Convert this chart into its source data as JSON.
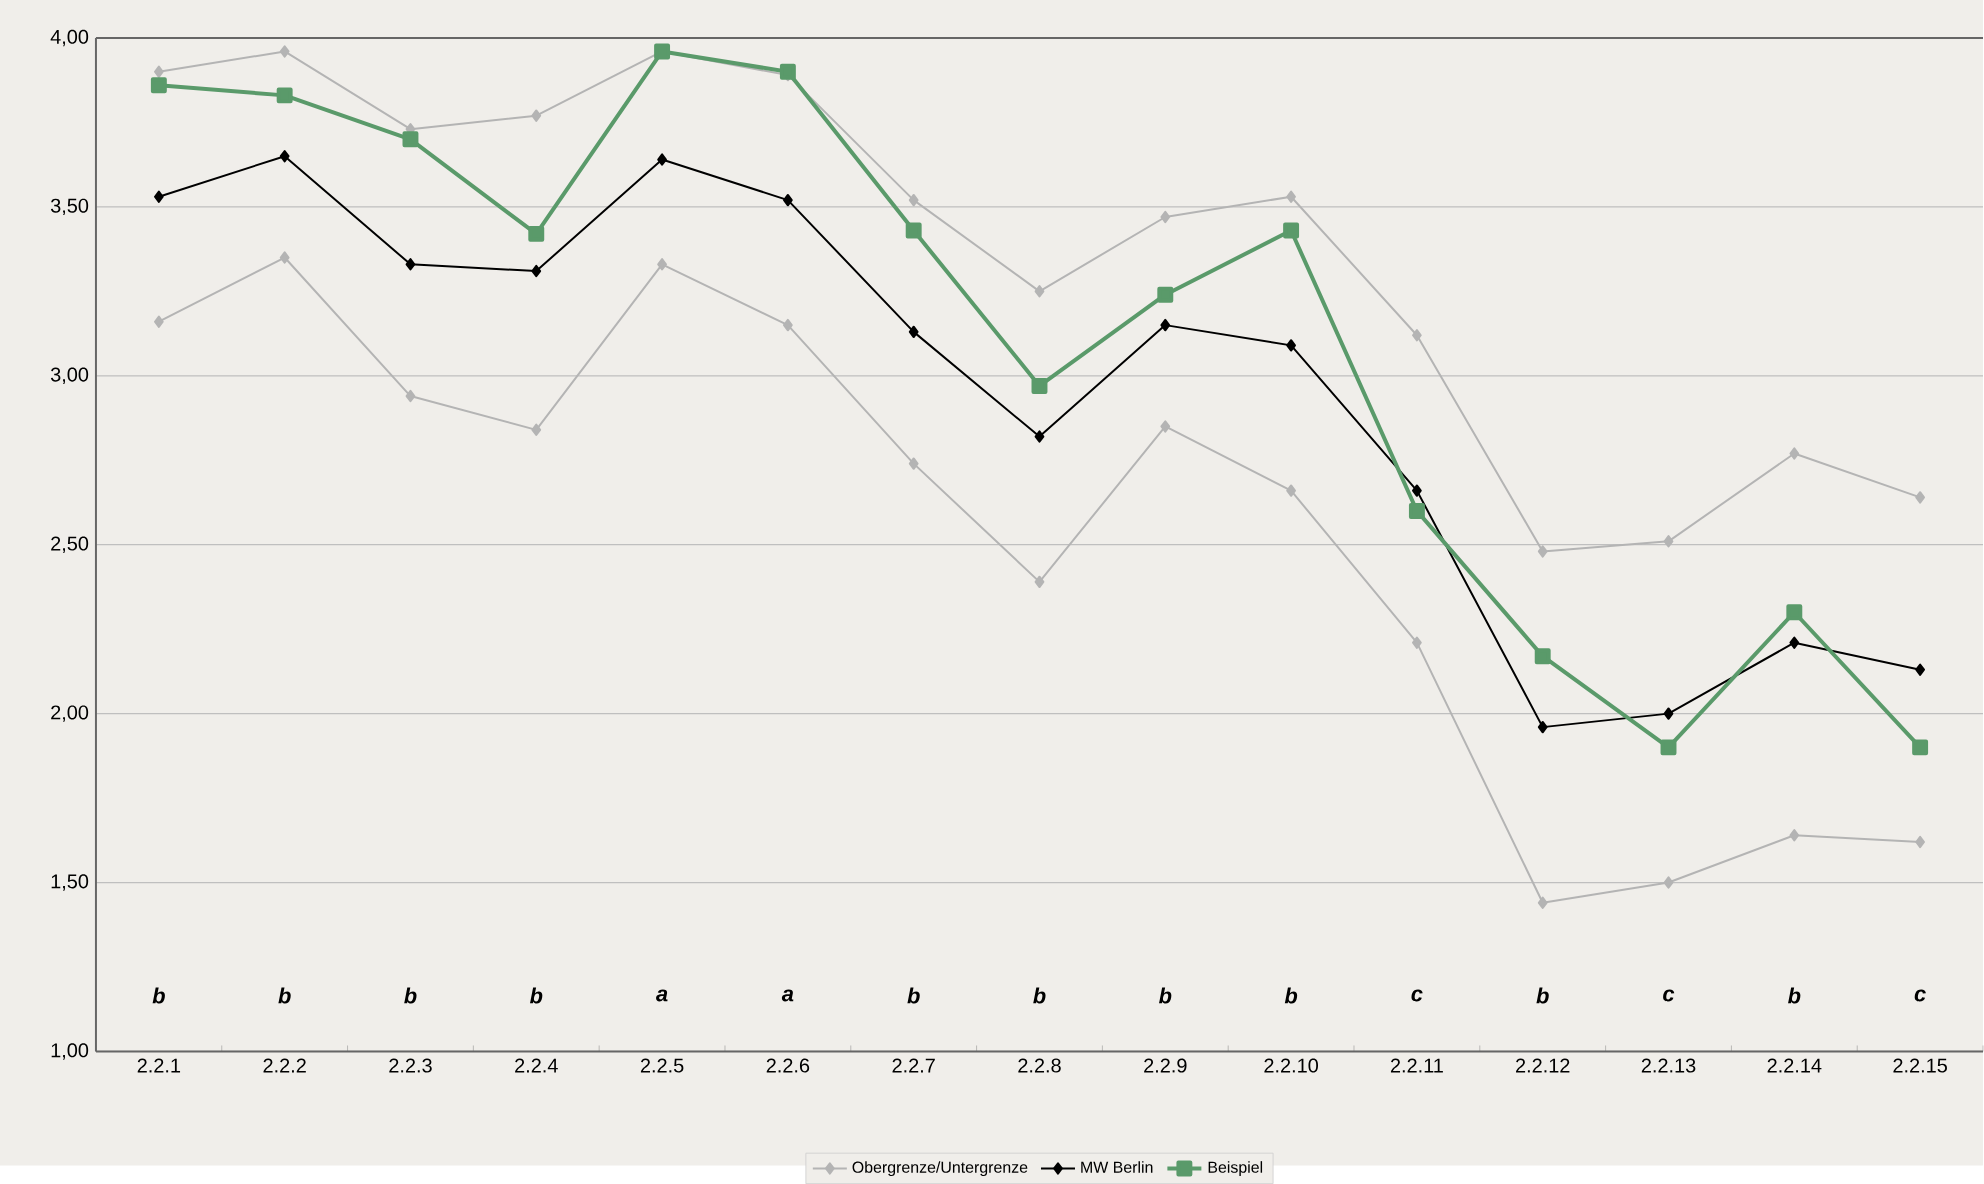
{
  "chart_data": {
    "type": "line",
    "categories": [
      "2.2.1",
      "2.2.2",
      "2.2.3",
      "2.2.4",
      "2.2.5",
      "2.2.6",
      "2.2.7",
      "2.2.8",
      "2.2.9",
      "2.2.10",
      "2.2.11",
      "2.2.12",
      "2.2.13",
      "2.2.14",
      "2.2.15"
    ],
    "series": [
      {
        "name": "Obergrenze/Untergrenze",
        "color": "#b4b4b4",
        "marker": "diamond",
        "values": [
          3.9,
          3.96,
          3.73,
          3.77,
          3.96,
          3.89,
          3.52,
          3.25,
          3.47,
          3.53,
          3.12,
          2.48,
          2.51,
          2.77,
          2.64
        ]
      },
      {
        "color": "#b4b4b4",
        "marker": "diamond",
        "values": [
          3.16,
          3.35,
          2.94,
          2.84,
          3.33,
          3.15,
          2.74,
          2.39,
          2.85,
          2.66,
          2.21,
          1.44,
          1.5,
          1.64,
          1.62
        ]
      },
      {
        "name": "MW Berlin",
        "color": "#000000",
        "marker": "diamond",
        "values": [
          3.53,
          3.65,
          3.33,
          3.31,
          3.64,
          3.52,
          3.13,
          2.82,
          3.15,
          3.09,
          2.66,
          1.96,
          2.0,
          2.21,
          2.13
        ]
      },
      {
        "name": "Beispiel",
        "color": "#5a9a6a",
        "marker": "square",
        "values": [
          3.86,
          3.83,
          3.7,
          3.42,
          3.96,
          3.9,
          3.43,
          2.97,
          3.24,
          3.43,
          2.6,
          2.17,
          1.9,
          2.3,
          1.9
        ]
      }
    ],
    "ylim": [
      1,
      4
    ],
    "yticks": [
      {
        "value": 1,
        "label": "1,00"
      },
      {
        "value": 1.5,
        "label": "1,50"
      },
      {
        "value": 2,
        "label": "2,00"
      },
      {
        "value": 2.5,
        "label": "2,50"
      },
      {
        "value": 3,
        "label": "3,00"
      },
      {
        "value": 3.5,
        "label": "3,50"
      },
      {
        "value": 4,
        "label": "4,00"
      }
    ],
    "grid": "y",
    "legend": "bottom",
    "line_style": "solid",
    "annotations": [
      "b",
      "b",
      "b",
      "b",
      "a",
      "a",
      "b",
      "b",
      "b",
      "b",
      "c",
      "b",
      "c",
      "b",
      "c"
    ]
  }
}
